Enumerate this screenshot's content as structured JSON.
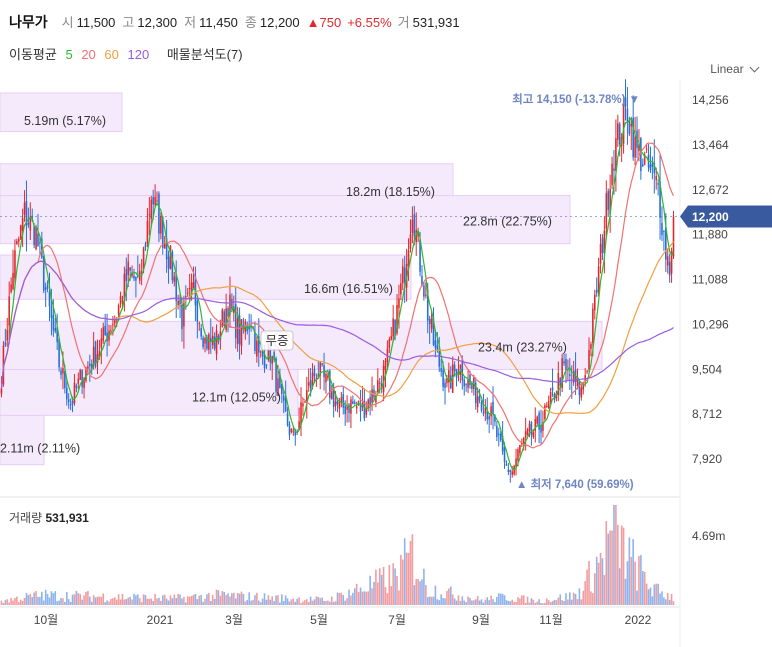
{
  "header": {
    "name": "나무가",
    "open_label": "시",
    "open": "11,500",
    "high_label": "고",
    "high": "12,300",
    "low_label": "저",
    "low": "11,450",
    "close_label": "종",
    "close": "12,200",
    "change": "▲750",
    "change_pct": "+6.55%",
    "volume_label": "거",
    "volume": "531,931"
  },
  "indicators": {
    "ma_label": "이동평균",
    "ma5": "5",
    "ma20": "20",
    "ma60": "60",
    "ma120": "120",
    "vp_label": "매물분석도(7)"
  },
  "scale_button": "Linear",
  "colors": {
    "up": "#e0292f",
    "down": "#2a6fd6",
    "ma5": "#2eb82e",
    "ma20": "#f07272",
    "ma60": "#f0a040",
    "ma120": "#9a5be0",
    "volume_profile": "#f3e6fb",
    "price_tag": "#3a5aa0"
  },
  "chart_data": {
    "type": "candlestick",
    "y_ticks": [
      "14,256",
      "13,464",
      "12,672",
      "11,880",
      "11,088",
      "10,296",
      "9,504",
      "8,712",
      "7,920"
    ],
    "ylim": [
      7600,
      14600
    ],
    "x_ticks": [
      "10월",
      "2021",
      "3월",
      "5월",
      "7월",
      "9월",
      "11월",
      "2022"
    ],
    "current_price_tag": "12,200",
    "high_marker": "최고 14,150 (-13.78%) ▼",
    "low_marker": "▲ 최저 7,640 (59.69%)",
    "volume_profile": [
      {
        "label": "5.19m (5.17%)",
        "low": 13700,
        "high": 14380
      },
      {
        "label": "18.2m (18.15%)",
        "low": 12570,
        "high": 13130
      },
      {
        "label": "22.8m (22.75%)",
        "low": 11720,
        "high": 12570
      },
      {
        "label": "16.6m (16.51%)",
        "low": 10740,
        "high": 11520
      },
      {
        "label": "23.4m (23.27%)",
        "low": 9500,
        "high": 10350
      },
      {
        "label": "12.1m (12.05%)",
        "low": 8690,
        "high": 9500
      },
      {
        "label": "2.11m (2.11%)",
        "low": 7820,
        "high": 8690
      }
    ],
    "annotation": "무증",
    "volume_panel": {
      "title": "거래량",
      "value": "531,931",
      "y_tick": "4.69m"
    },
    "price_keypoints": [
      [
        0,
        9400
      ],
      [
        6,
        11300
      ],
      [
        12,
        12250
      ],
      [
        18,
        11900
      ],
      [
        24,
        10700
      ],
      [
        30,
        9600
      ],
      [
        36,
        8900
      ],
      [
        42,
        9400
      ],
      [
        48,
        9700
      ],
      [
        54,
        10100
      ],
      [
        60,
        10500
      ],
      [
        66,
        11200
      ],
      [
        72,
        11000
      ],
      [
        78,
        12600
      ],
      [
        84,
        11900
      ],
      [
        88,
        11400
      ],
      [
        94,
        10400
      ],
      [
        100,
        10900
      ],
      [
        106,
        10000
      ],
      [
        112,
        10000
      ],
      [
        118,
        10700
      ],
      [
        124,
        10100
      ],
      [
        130,
        10400
      ],
      [
        134,
        9700
      ],
      [
        140,
        9800
      ],
      [
        146,
        8850
      ],
      [
        152,
        8250
      ],
      [
        158,
        9000
      ],
      [
        164,
        9500
      ],
      [
        170,
        9200
      ],
      [
        176,
        8800
      ],
      [
        182,
        8900
      ],
      [
        188,
        8800
      ],
      [
        194,
        9100
      ],
      [
        200,
        9500
      ],
      [
        206,
        10500
      ],
      [
        210,
        11300
      ],
      [
        214,
        12400
      ],
      [
        218,
        11400
      ],
      [
        222,
        10500
      ],
      [
        226,
        9800
      ],
      [
        232,
        9200
      ],
      [
        238,
        9600
      ],
      [
        244,
        9200
      ],
      [
        250,
        9000
      ],
      [
        256,
        8600
      ],
      [
        262,
        7800
      ],
      [
        266,
        7700
      ],
      [
        270,
        8100
      ],
      [
        274,
        8300
      ],
      [
        280,
        8500
      ],
      [
        286,
        8900
      ],
      [
        292,
        9500
      ],
      [
        298,
        9300
      ],
      [
        302,
        9100
      ],
      [
        306,
        9800
      ],
      [
        312,
        11500
      ],
      [
        318,
        13200
      ],
      [
        322,
        13700
      ],
      [
        326,
        14100
      ],
      [
        330,
        13400
      ],
      [
        336,
        13100
      ],
      [
        342,
        12700
      ],
      [
        346,
        11600
      ],
      [
        348,
        11300
      ],
      [
        350,
        12200
      ]
    ],
    "volume_keypoints": [
      [
        0,
        0.05
      ],
      [
        20,
        0.12
      ],
      [
        60,
        0.1
      ],
      [
        90,
        0.08
      ],
      [
        115,
        0.12
      ],
      [
        130,
        0.1
      ],
      [
        170,
        0.06
      ],
      [
        205,
        0.35
      ],
      [
        214,
        0.62
      ],
      [
        222,
        0.2
      ],
      [
        250,
        0.06
      ],
      [
        262,
        0.1
      ],
      [
        280,
        0.05
      ],
      [
        300,
        0.12
      ],
      [
        312,
        0.55
      ],
      [
        318,
        0.9
      ],
      [
        326,
        0.6
      ],
      [
        340,
        0.18
      ],
      [
        350,
        0.1
      ]
    ]
  }
}
